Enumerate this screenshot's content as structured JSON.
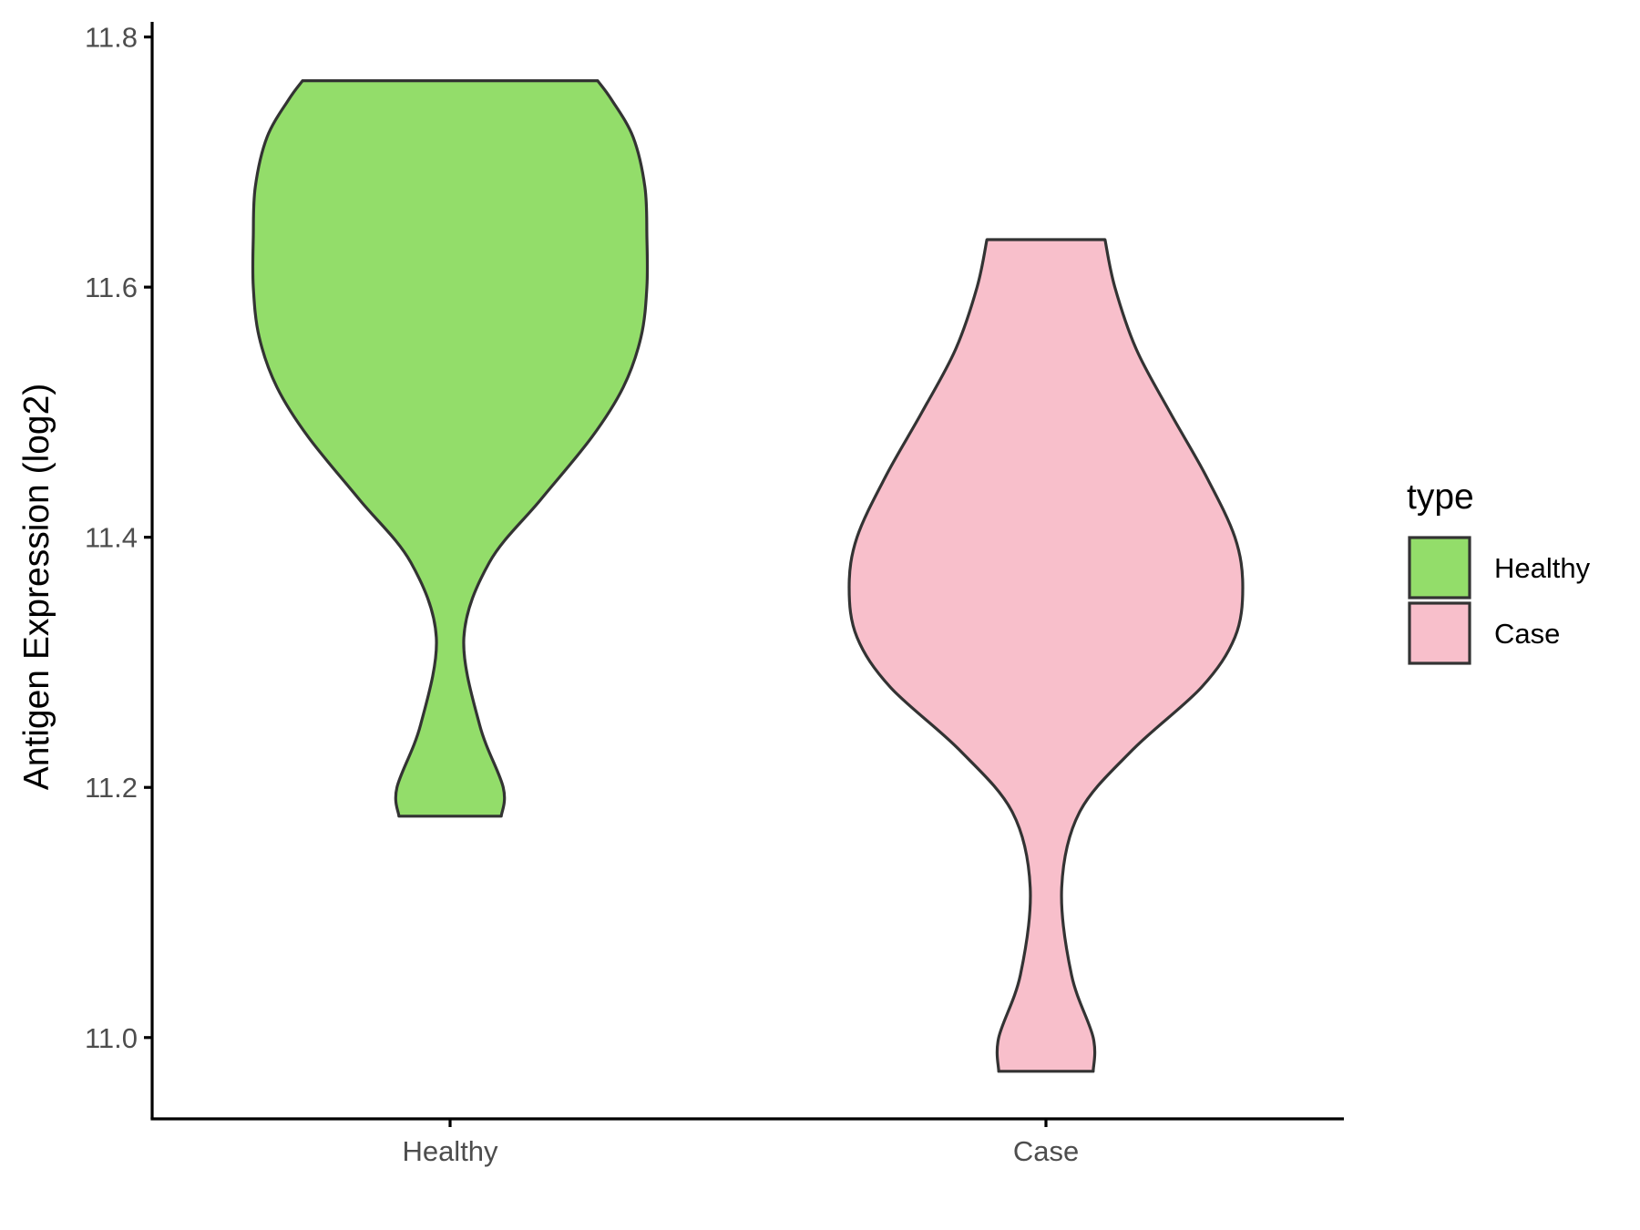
{
  "chart_data": {
    "type": "violin",
    "title": "",
    "xlabel": "",
    "ylabel": "Antigen Expression (log2)",
    "categories": [
      "Healthy",
      "Case"
    ],
    "ylim": [
      10.935,
      11.815
    ],
    "yticks": [
      11.0,
      11.2,
      11.4,
      11.6,
      11.8
    ],
    "ytick_labels": [
      "11.0",
      "11.2",
      "11.4",
      "11.6",
      "11.8"
    ],
    "grid": false,
    "legend": {
      "title": "type",
      "position": "right",
      "entries": [
        {
          "label": "Healthy",
          "color": "#93dd6a"
        },
        {
          "label": "Case",
          "color": "#f8bfcb"
        }
      ]
    },
    "series": [
      {
        "name": "Healthy",
        "color": "#93dd6a",
        "min": 11.177,
        "max": 11.765,
        "density": [
          {
            "y": 11.177,
            "w": 0.26
          },
          {
            "y": 11.2,
            "w": 0.27
          },
          {
            "y": 11.25,
            "w": 0.15
          },
          {
            "y": 11.32,
            "w": 0.07
          },
          {
            "y": 11.38,
            "w": 0.2
          },
          {
            "y": 11.43,
            "w": 0.46
          },
          {
            "y": 11.48,
            "w": 0.72
          },
          {
            "y": 11.52,
            "w": 0.88
          },
          {
            "y": 11.56,
            "w": 0.97
          },
          {
            "y": 11.6,
            "w": 1.0
          },
          {
            "y": 11.64,
            "w": 1.0
          },
          {
            "y": 11.68,
            "w": 0.99
          },
          {
            "y": 11.72,
            "w": 0.93
          },
          {
            "y": 11.75,
            "w": 0.82
          },
          {
            "y": 11.765,
            "w": 0.75
          }
        ]
      },
      {
        "name": "Case",
        "color": "#f8bfcb",
        "min": 10.973,
        "max": 11.638,
        "density": [
          {
            "y": 10.973,
            "w": 0.24
          },
          {
            "y": 11.0,
            "w": 0.24
          },
          {
            "y": 11.05,
            "w": 0.13
          },
          {
            "y": 11.12,
            "w": 0.08
          },
          {
            "y": 11.18,
            "w": 0.17
          },
          {
            "y": 11.23,
            "w": 0.44
          },
          {
            "y": 11.28,
            "w": 0.79
          },
          {
            "y": 11.32,
            "w": 0.96
          },
          {
            "y": 11.36,
            "w": 1.0
          },
          {
            "y": 11.4,
            "w": 0.96
          },
          {
            "y": 11.45,
            "w": 0.81
          },
          {
            "y": 11.5,
            "w": 0.63
          },
          {
            "y": 11.55,
            "w": 0.46
          },
          {
            "y": 11.6,
            "w": 0.35
          },
          {
            "y": 11.638,
            "w": 0.3
          }
        ]
      }
    ]
  },
  "colors": {
    "outline": "#333333",
    "axis": "#000000"
  }
}
